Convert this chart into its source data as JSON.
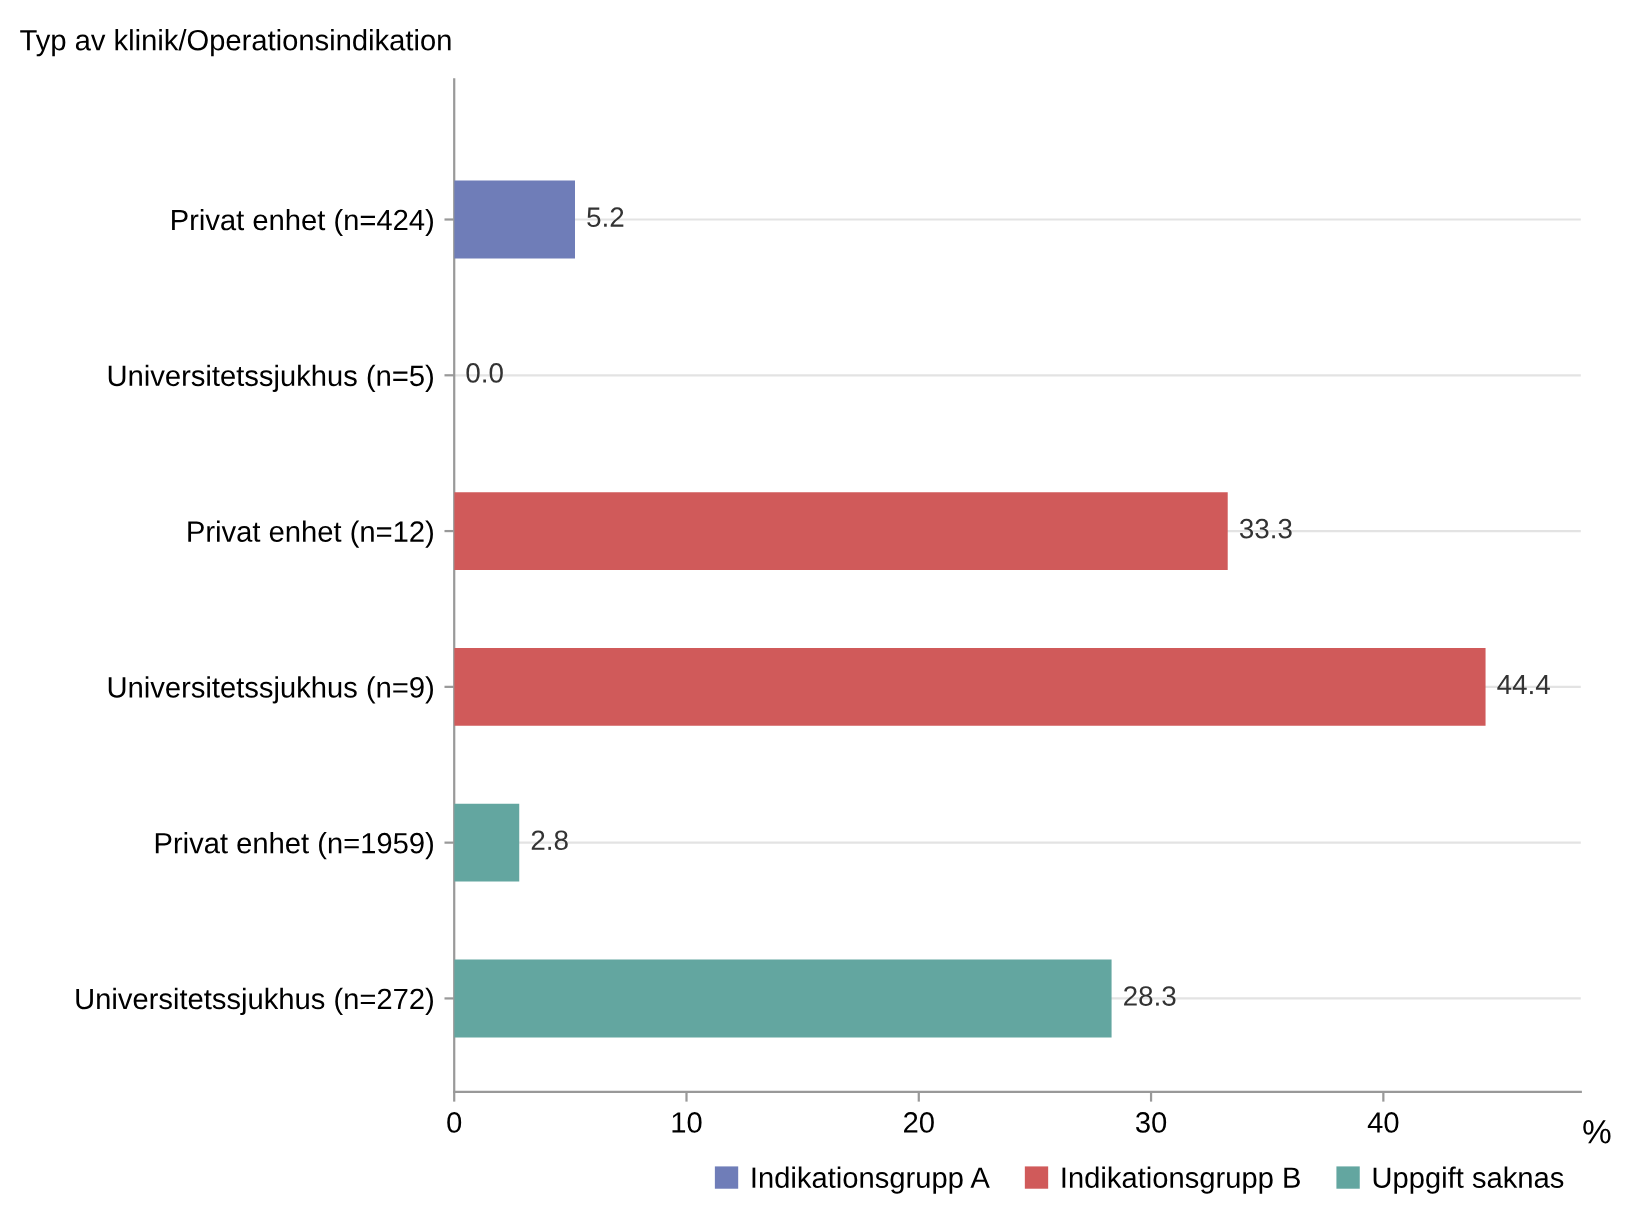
{
  "chart_data": {
    "type": "bar",
    "orientation": "horizontal",
    "ylabel": "Typ av klinik/Operationsindikation",
    "xlabel": "%",
    "categories": [
      "Privat enhet (n=424)",
      "Universitetssjukhus (n=5)",
      "Privat enhet (n=12)",
      "Universitetssjukhus (n=9)",
      "Privat enhet (n=1959)",
      "Universitetssjukhus (n=272)"
    ],
    "series": [
      {
        "name": "Indikationsgrupp A",
        "color": "#6f7db8",
        "values": [
          5.2,
          0.0,
          null,
          null,
          null,
          null
        ],
        "value_labels": [
          "5.2",
          "0.0",
          null,
          null,
          null,
          null
        ]
      },
      {
        "name": "Indikationsgrupp B",
        "color": "#d05a5a",
        "values": [
          null,
          null,
          33.3,
          44.4,
          null,
          null
        ],
        "value_labels": [
          null,
          null,
          "33.3",
          "44.4",
          null,
          null
        ]
      },
      {
        "name": "Uppgift saknas",
        "color": "#63a6a0",
        "values": [
          null,
          null,
          null,
          null,
          2.8,
          28.3
        ],
        "value_labels": [
          null,
          null,
          null,
          null,
          "2.8",
          "28.3"
        ]
      }
    ],
    "xlim": [
      0,
      48.5
    ],
    "xticks": [
      0,
      10,
      20,
      30,
      40
    ],
    "grid": "y",
    "legend": "bottom"
  }
}
